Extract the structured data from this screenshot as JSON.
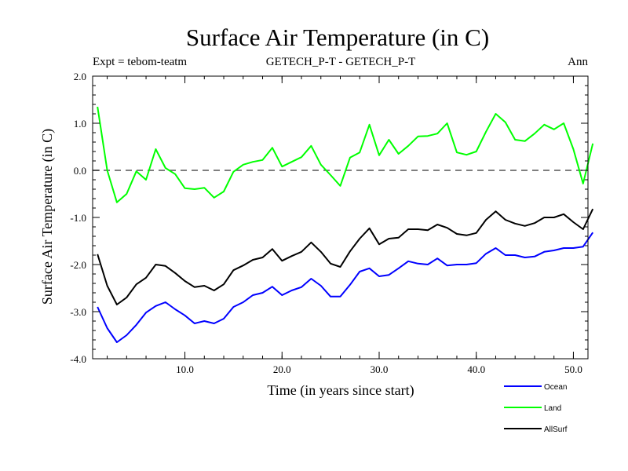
{
  "chart_data": {
    "type": "line",
    "title": "Surface Air Temperature (in C)",
    "subtitle_left": "Expt = tebom-teatm",
    "subtitle_center": "GETECH_P-T - GETECH_P-T",
    "subtitle_right": "Ann",
    "xlabel": "Time (in years since start)",
    "ylabel": "Surface Air Temperature (in C)",
    "xlim": [
      0.5,
      51.5
    ],
    "ylim": [
      -4.0,
      2.0
    ],
    "x_ticks": [
      "10.0",
      "20.0",
      "30.0",
      "40.0",
      "50.0"
    ],
    "y_ticks": [
      "2.0",
      "1.0",
      "0.0",
      "-1.0",
      "-2.0",
      "-3.0",
      "-4.0"
    ],
    "zero_line": true,
    "legend_position": "bottom-right",
    "x": [
      1,
      2,
      3,
      4,
      5,
      6,
      7,
      8,
      9,
      10,
      11,
      12,
      13,
      14,
      15,
      16,
      17,
      18,
      19,
      20,
      21,
      22,
      23,
      24,
      25,
      26,
      27,
      28,
      29,
      30,
      31,
      32,
      33,
      34,
      35,
      36,
      37,
      38,
      39,
      40,
      41,
      42,
      43,
      44,
      45,
      46,
      47,
      48,
      49,
      50,
      51,
      52
    ],
    "series": [
      {
        "name": "Ocean",
        "color": "#0000ff",
        "values": [
          -2.9,
          -3.35,
          -3.65,
          -3.5,
          -3.28,
          -3.02,
          -2.88,
          -2.8,
          -2.95,
          -3.08,
          -3.25,
          -3.2,
          -3.25,
          -3.15,
          -2.9,
          -2.8,
          -2.65,
          -2.6,
          -2.47,
          -2.65,
          -2.55,
          -2.48,
          -2.3,
          -2.45,
          -2.68,
          -2.68,
          -2.43,
          -2.15,
          -2.08,
          -2.25,
          -2.22,
          -2.08,
          -1.93,
          -1.98,
          -2.0,
          -1.87,
          -2.02,
          -2.0,
          -2.0,
          -1.97,
          -1.77,
          -1.65,
          -1.8,
          -1.8,
          -1.85,
          -1.83,
          -1.73,
          -1.7,
          -1.65,
          -1.65,
          -1.62,
          -1.32
        ]
      },
      {
        "name": "Land",
        "color": "#00ff00",
        "values": [
          1.35,
          0.0,
          -0.68,
          -0.5,
          -0.02,
          -0.2,
          0.45,
          0.05,
          -0.08,
          -0.38,
          -0.4,
          -0.37,
          -0.58,
          -0.45,
          -0.03,
          0.12,
          0.18,
          0.22,
          0.48,
          0.08,
          0.18,
          0.28,
          0.52,
          0.12,
          -0.1,
          -0.33,
          0.27,
          0.38,
          0.97,
          0.32,
          0.65,
          0.35,
          0.52,
          0.72,
          0.73,
          0.78,
          1.0,
          0.38,
          0.33,
          0.4,
          0.82,
          1.2,
          1.02,
          0.65,
          0.62,
          0.78,
          0.97,
          0.87,
          1.0,
          0.45,
          -0.28,
          0.57
        ]
      },
      {
        "name": "AllSurf",
        "color": "#000000",
        "values": [
          -1.78,
          -2.45,
          -2.85,
          -2.7,
          -2.42,
          -2.28,
          -2.0,
          -2.03,
          -2.18,
          -2.35,
          -2.48,
          -2.45,
          -2.55,
          -2.42,
          -2.12,
          -2.02,
          -1.9,
          -1.85,
          -1.67,
          -1.92,
          -1.82,
          -1.73,
          -1.53,
          -1.73,
          -1.98,
          -2.05,
          -1.72,
          -1.45,
          -1.23,
          -1.57,
          -1.45,
          -1.43,
          -1.25,
          -1.25,
          -1.27,
          -1.15,
          -1.22,
          -1.35,
          -1.38,
          -1.33,
          -1.05,
          -0.87,
          -1.05,
          -1.13,
          -1.18,
          -1.12,
          -1.0,
          -1.0,
          -0.93,
          -1.1,
          -1.25,
          -0.82
        ]
      }
    ]
  }
}
